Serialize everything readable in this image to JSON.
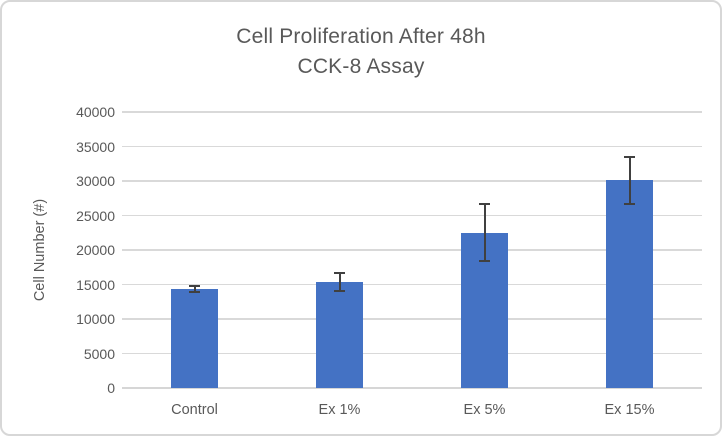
{
  "chart_data": {
    "type": "bar",
    "title": "Cell Proliferation After 48h CCK-8 Assay",
    "title_lines": [
      "Cell Proliferation After 48h",
      "CCK-8 Assay"
    ],
    "xlabel": "",
    "ylabel": "Cell Number (#)",
    "categories": [
      "Control",
      "Ex 1%",
      "Ex 5%",
      "Ex 15%"
    ],
    "values": [
      14400,
      15400,
      22500,
      30100
    ],
    "errors": [
      450,
      1300,
      4100,
      3400
    ],
    "ylim": [
      0,
      40000
    ],
    "ytick_step": 5000,
    "yticks": [
      0,
      5000,
      10000,
      15000,
      20000,
      25000,
      30000,
      35000,
      40000
    ],
    "grid": true,
    "legend_position": "none",
    "colors": {
      "bar": "#4472c4",
      "error_bar": "#404040",
      "gridline": "#d9d9d9",
      "text": "#595959",
      "frame_border": "#d7d7d7",
      "background": "#ffffff"
    }
  }
}
